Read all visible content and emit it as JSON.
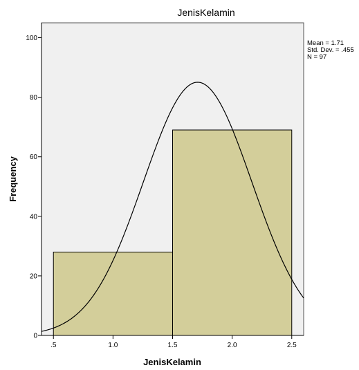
{
  "chart_data": {
    "type": "bar",
    "title": "JenisKelamin",
    "xlabel": "JenisKelamin",
    "ylabel": "Frequency",
    "xlim": [
      0.4,
      2.6
    ],
    "ylim": [
      0,
      105
    ],
    "bins": [
      {
        "from": 0.5,
        "to": 1.5,
        "value": 28
      },
      {
        "from": 1.5,
        "to": 2.5,
        "value": 69
      }
    ],
    "x_ticks": [
      0.5,
      1.0,
      1.5,
      2.0,
      2.5
    ],
    "x_tick_labels": [
      ".5",
      "1.0",
      "1.5",
      "2.0",
      "2.5"
    ],
    "y_ticks": [
      0,
      20,
      40,
      60,
      80,
      100
    ],
    "y_tick_labels": [
      "0",
      "20",
      "40",
      "60",
      "80",
      "100"
    ],
    "normal_curve": {
      "mean": 1.71,
      "std_dev": 0.455,
      "n": 97,
      "bin_width": 1.0
    },
    "stats": [
      "Mean = 1.71",
      "Std. Dev. = .455",
      "N = 97"
    ],
    "grid": false,
    "legend": "none",
    "colors": {
      "plot_background": "#f0f0f0",
      "bar_fill": "#d3ce9a",
      "bar_stroke": "#000000",
      "curve": "#000000"
    }
  }
}
